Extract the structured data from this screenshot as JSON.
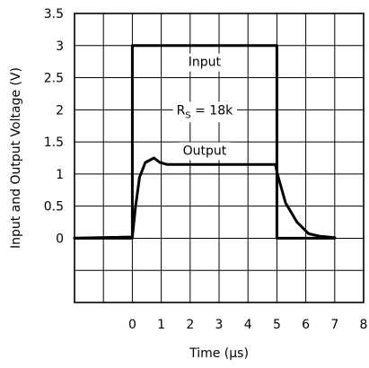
{
  "chart_data": {
    "type": "line",
    "xlabel": "Time (μs)",
    "ylabel": "Input and Output Voltage (V)",
    "xlim": [
      -2,
      8
    ],
    "ylim": [
      -1,
      3.5
    ],
    "x_ticks": [
      "0",
      "1",
      "2",
      "3",
      "4",
      "5",
      "6",
      "7",
      "8"
    ],
    "y_ticks": [
      "0",
      "0.5",
      "1",
      "1.5",
      "2",
      "2.5",
      "3",
      "3.5"
    ],
    "grid": true,
    "annotations": {
      "input": "Input",
      "output": "Output",
      "rs_main": "R",
      "rs_sub": "S",
      "rs_value": " = 18k"
    },
    "series": [
      {
        "name": "Input",
        "x": [
          -2,
          0,
          0,
          5,
          5,
          7
        ],
        "y": [
          0,
          0,
          3,
          3,
          0,
          0
        ]
      },
      {
        "name": "Output",
        "x": [
          -2,
          0,
          0.1,
          0.25,
          0.45,
          0.75,
          0.95,
          1.2,
          2,
          3,
          4,
          4.95,
          5.02,
          5.3,
          5.7,
          6.1,
          6.5,
          7
        ],
        "y": [
          0,
          0.02,
          0.45,
          0.95,
          1.18,
          1.25,
          1.18,
          1.15,
          1.15,
          1.15,
          1.15,
          1.15,
          1.0,
          0.55,
          0.25,
          0.07,
          0.03,
          0.01
        ]
      }
    ]
  }
}
